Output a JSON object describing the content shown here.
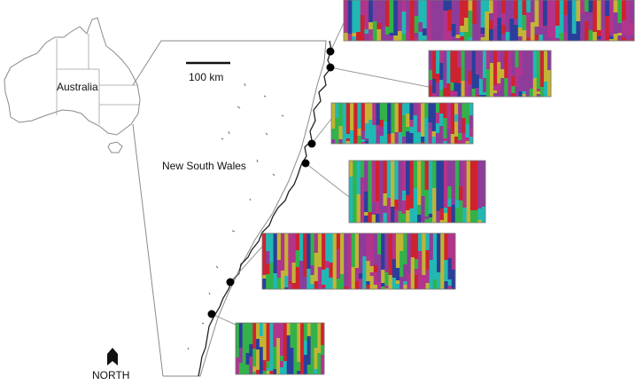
{
  "labels": {
    "australia": "Australia",
    "state": "New South Wales",
    "scale": "100 km",
    "north": "NORTH"
  },
  "palette": {
    "purple": "#8e3c9a",
    "magenta": "#b2348c",
    "navy": "#2a3f9c",
    "teal": "#21b8b4",
    "green": "#33b24a",
    "olive": "#c2b434",
    "red": "#cf2230"
  },
  "colors": {
    "outline": "#8a8a8a",
    "coast": "#222222",
    "site": "#000000",
    "connector": "#999999"
  },
  "sites": [
    {
      "name": "site-1",
      "cluster_colors": [
        "purple",
        "magenta",
        "navy",
        "olive",
        "teal",
        "red",
        "green"
      ]
    },
    {
      "name": "site-2",
      "cluster_colors": [
        "purple",
        "magenta",
        "navy",
        "teal",
        "green",
        "red",
        "olive"
      ]
    },
    {
      "name": "site-3",
      "cluster_colors": [
        "teal",
        "green",
        "purple",
        "red",
        "magenta",
        "olive",
        "navy"
      ]
    },
    {
      "name": "site-4",
      "cluster_colors": [
        "green",
        "teal",
        "olive",
        "red",
        "purple",
        "magenta",
        "navy"
      ]
    },
    {
      "name": "site-5",
      "cluster_colors": [
        "olive",
        "teal",
        "magenta",
        "red",
        "green",
        "purple",
        "navy"
      ]
    },
    {
      "name": "site-6",
      "cluster_colors": [
        "green",
        "olive",
        "navy",
        "purple",
        "teal",
        "red",
        "magenta"
      ]
    }
  ]
}
